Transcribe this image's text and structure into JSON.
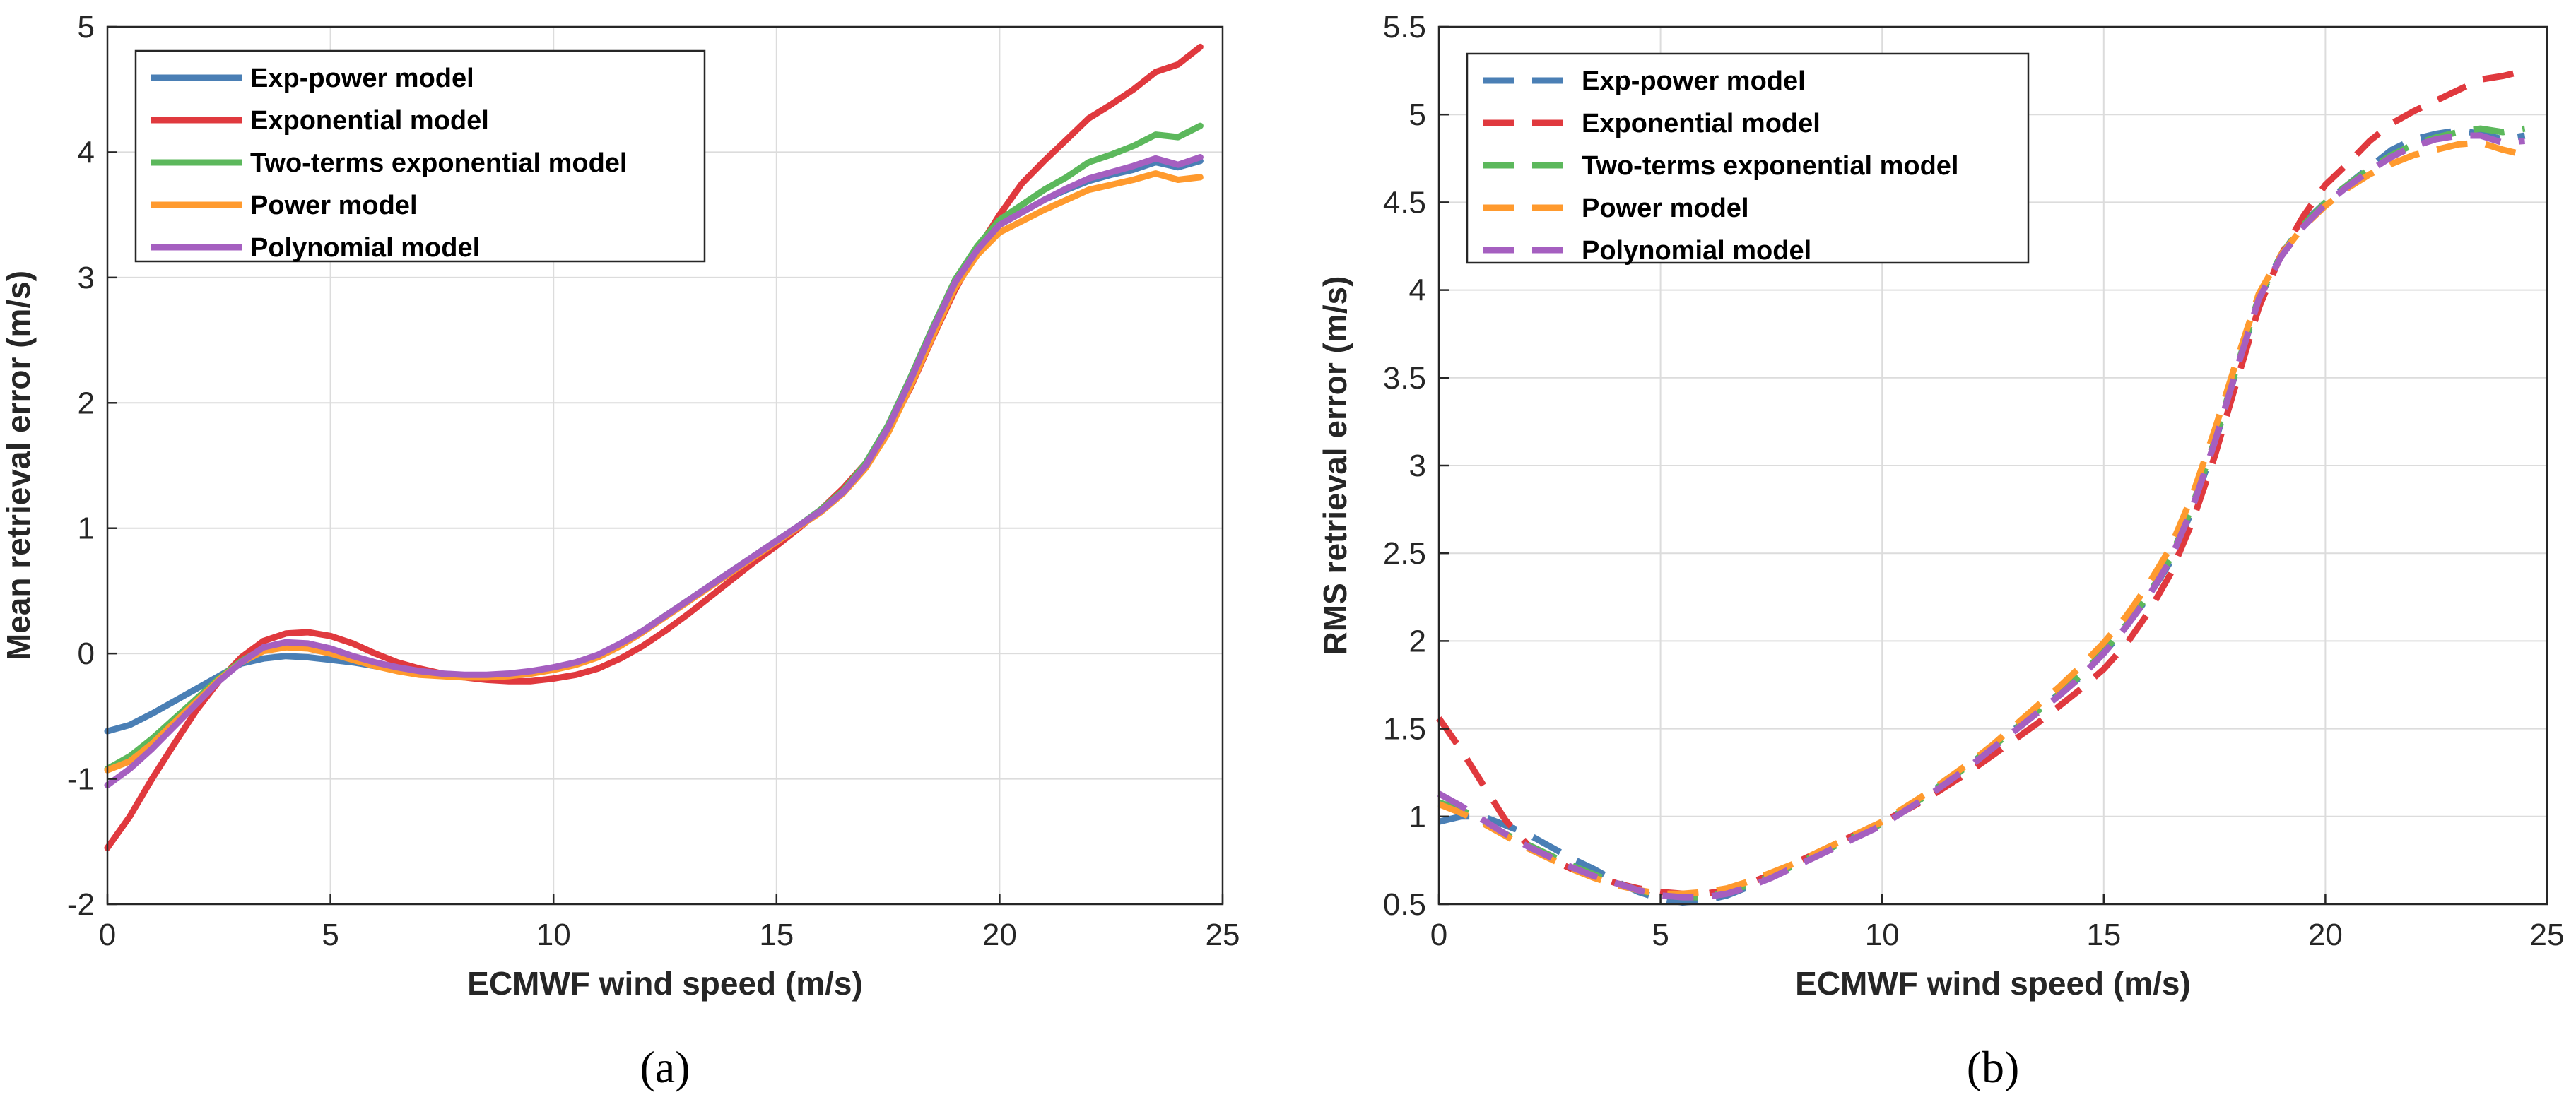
{
  "colors": {
    "exp_power": "#4a7fb5",
    "exponential": "#e0393e",
    "two_terms": "#5cb85c",
    "power": "#ff9a2e",
    "polynomial": "#a55fc0"
  },
  "chart_data": [
    {
      "type": "line",
      "panel_label": "(a)",
      "title": "",
      "xlabel": "ECMWF wind speed (m/s)",
      "ylabel": "Mean retrieval error (m/s)",
      "xlim": [
        0,
        25
      ],
      "ylim": [
        -2,
        5
      ],
      "xticks": [
        0,
        5,
        10,
        15,
        20,
        25
      ],
      "yticks": [
        -2,
        -1,
        0,
        1,
        2,
        3,
        4,
        5
      ],
      "grid": true,
      "legend_position": "top-left",
      "line_style": "solid",
      "x": [
        0,
        0.5,
        1,
        1.5,
        2,
        2.5,
        3,
        3.5,
        4,
        4.5,
        5,
        5.5,
        6,
        6.5,
        7,
        7.5,
        8,
        8.5,
        9,
        9.5,
        10,
        10.5,
        11,
        11.5,
        12,
        12.5,
        13,
        13.5,
        14,
        14.5,
        15,
        15.5,
        16,
        16.5,
        17,
        17.5,
        18,
        18.5,
        19,
        19.5,
        20,
        20.5,
        21,
        21.5,
        22,
        22.5,
        23,
        23.5,
        24,
        24.5
      ],
      "series": [
        {
          "name": "Exp-power model",
          "color_key": "exp_power",
          "values": [
            -0.62,
            -0.57,
            -0.48,
            -0.38,
            -0.28,
            -0.18,
            -0.08,
            -0.04,
            -0.02,
            -0.03,
            -0.05,
            -0.07,
            -0.1,
            -0.13,
            -0.15,
            -0.17,
            -0.18,
            -0.18,
            -0.17,
            -0.15,
            -0.12,
            -0.08,
            -0.02,
            0.07,
            0.18,
            0.3,
            0.42,
            0.54,
            0.66,
            0.78,
            0.9,
            1.02,
            1.15,
            1.3,
            1.52,
            1.82,
            2.2,
            2.6,
            2.97,
            3.22,
            3.42,
            3.52,
            3.62,
            3.7,
            3.77,
            3.82,
            3.86,
            3.92,
            3.88,
            3.93
          ]
        },
        {
          "name": "Exponential model",
          "color_key": "exponential",
          "values": [
            -1.55,
            -1.3,
            -1.0,
            -0.72,
            -0.45,
            -0.22,
            -0.03,
            0.1,
            0.16,
            0.17,
            0.14,
            0.08,
            0.0,
            -0.07,
            -0.12,
            -0.16,
            -0.19,
            -0.21,
            -0.22,
            -0.22,
            -0.2,
            -0.17,
            -0.12,
            -0.04,
            0.06,
            0.18,
            0.31,
            0.45,
            0.59,
            0.73,
            0.86,
            1.0,
            1.15,
            1.32,
            1.52,
            1.78,
            2.12,
            2.52,
            2.9,
            3.22,
            3.5,
            3.75,
            3.93,
            4.1,
            4.27,
            4.38,
            4.5,
            4.64,
            4.7,
            4.84
          ]
        },
        {
          "name": "Two-terms exponential model",
          "color_key": "two_terms",
          "values": [
            -0.92,
            -0.82,
            -0.68,
            -0.52,
            -0.36,
            -0.2,
            -0.06,
            0.04,
            0.07,
            0.05,
            0.01,
            -0.04,
            -0.09,
            -0.13,
            -0.16,
            -0.17,
            -0.18,
            -0.18,
            -0.17,
            -0.15,
            -0.12,
            -0.08,
            -0.02,
            0.07,
            0.18,
            0.3,
            0.42,
            0.54,
            0.66,
            0.78,
            0.9,
            1.02,
            1.15,
            1.3,
            1.52,
            1.82,
            2.2,
            2.6,
            2.98,
            3.25,
            3.46,
            3.58,
            3.7,
            3.8,
            3.92,
            3.98,
            4.05,
            4.14,
            4.12,
            4.21
          ]
        },
        {
          "name": "Power model",
          "color_key": "power",
          "values": [
            -0.93,
            -0.86,
            -0.72,
            -0.55,
            -0.38,
            -0.21,
            -0.07,
            0.02,
            0.05,
            0.04,
            0.0,
            -0.05,
            -0.1,
            -0.14,
            -0.17,
            -0.18,
            -0.19,
            -0.19,
            -0.18,
            -0.16,
            -0.13,
            -0.09,
            -0.03,
            0.06,
            0.17,
            0.29,
            0.41,
            0.53,
            0.65,
            0.77,
            0.89,
            1.01,
            1.13,
            1.28,
            1.48,
            1.76,
            2.13,
            2.53,
            2.92,
            3.18,
            3.36,
            3.45,
            3.54,
            3.62,
            3.7,
            3.74,
            3.78,
            3.83,
            3.78,
            3.8
          ]
        },
        {
          "name": "Polynomial model",
          "color_key": "polynomial",
          "values": [
            -1.05,
            -0.92,
            -0.76,
            -0.58,
            -0.4,
            -0.22,
            -0.07,
            0.05,
            0.09,
            0.08,
            0.04,
            -0.02,
            -0.07,
            -0.11,
            -0.14,
            -0.16,
            -0.17,
            -0.17,
            -0.16,
            -0.14,
            -0.11,
            -0.07,
            -0.01,
            0.08,
            0.18,
            0.3,
            0.42,
            0.54,
            0.66,
            0.78,
            0.9,
            1.02,
            1.14,
            1.29,
            1.5,
            1.8,
            2.18,
            2.58,
            2.96,
            3.22,
            3.42,
            3.52,
            3.62,
            3.71,
            3.79,
            3.84,
            3.89,
            3.95,
            3.9,
            3.96
          ]
        }
      ]
    },
    {
      "type": "line",
      "panel_label": "(b)",
      "title": "",
      "xlabel": "ECMWF wind speed (m/s)",
      "ylabel": "RMS retrieval error (m/s)",
      "xlim": [
        0,
        25
      ],
      "ylim": [
        0.5,
        5.5
      ],
      "xticks": [
        0,
        5,
        10,
        15,
        20,
        25
      ],
      "yticks": [
        0.5,
        1,
        1.5,
        2,
        2.5,
        3,
        3.5,
        4,
        4.5,
        5,
        5.5
      ],
      "grid": true,
      "legend_position": "top-left",
      "line_style": "dashed",
      "x": [
        0,
        0.5,
        1,
        1.5,
        2,
        2.5,
        3,
        3.5,
        4,
        4.5,
        5,
        5.5,
        6,
        6.5,
        7,
        7.5,
        8,
        8.5,
        9,
        9.5,
        10,
        10.5,
        11,
        11.5,
        12,
        12.5,
        13,
        13.5,
        14,
        14.5,
        15,
        15.5,
        16,
        16.5,
        17,
        17.5,
        18,
        18.5,
        19,
        19.5,
        20,
        20.5,
        21,
        21.5,
        22,
        22.5,
        23,
        23.5,
        24,
        24.5
      ],
      "series": [
        {
          "name": "Exp-power model",
          "color_key": "exp_power",
          "values": [
            0.97,
            1.0,
            1.0,
            0.95,
            0.9,
            0.83,
            0.76,
            0.7,
            0.63,
            0.57,
            0.53,
            0.51,
            0.52,
            0.55,
            0.6,
            0.66,
            0.72,
            0.78,
            0.84,
            0.9,
            0.96,
            1.04,
            1.12,
            1.21,
            1.3,
            1.4,
            1.5,
            1.6,
            1.7,
            1.8,
            1.93,
            2.08,
            2.25,
            2.45,
            2.75,
            3.12,
            3.55,
            3.95,
            4.2,
            4.38,
            4.5,
            4.6,
            4.7,
            4.8,
            4.86,
            4.89,
            4.91,
            4.89,
            4.86,
            4.88
          ]
        },
        {
          "name": "Exponential model",
          "color_key": "exponential",
          "values": [
            1.56,
            1.38,
            1.18,
            0.98,
            0.84,
            0.76,
            0.7,
            0.66,
            0.62,
            0.59,
            0.57,
            0.56,
            0.56,
            0.58,
            0.62,
            0.67,
            0.73,
            0.79,
            0.85,
            0.91,
            0.97,
            1.03,
            1.1,
            1.18,
            1.26,
            1.35,
            1.44,
            1.53,
            1.63,
            1.73,
            1.84,
            1.98,
            2.16,
            2.38,
            2.68,
            3.05,
            3.48,
            3.9,
            4.2,
            4.42,
            4.6,
            4.72,
            4.85,
            4.95,
            5.02,
            5.08,
            5.14,
            5.2,
            5.22,
            5.25
          ]
        },
        {
          "name": "Two-terms exponential model",
          "color_key": "two_terms",
          "values": [
            1.08,
            1.04,
            0.97,
            0.9,
            0.84,
            0.78,
            0.72,
            0.67,
            0.62,
            0.58,
            0.55,
            0.54,
            0.54,
            0.57,
            0.61,
            0.66,
            0.72,
            0.78,
            0.84,
            0.9,
            0.96,
            1.04,
            1.12,
            1.21,
            1.3,
            1.4,
            1.5,
            1.6,
            1.7,
            1.81,
            1.94,
            2.09,
            2.26,
            2.47,
            2.77,
            3.14,
            3.56,
            3.96,
            4.2,
            4.37,
            4.5,
            4.6,
            4.69,
            4.77,
            4.83,
            4.87,
            4.9,
            4.92,
            4.9,
            4.92
          ]
        },
        {
          "name": "Power model",
          "color_key": "power",
          "values": [
            1.07,
            1.02,
            0.96,
            0.89,
            0.82,
            0.76,
            0.7,
            0.65,
            0.61,
            0.58,
            0.56,
            0.56,
            0.57,
            0.59,
            0.63,
            0.68,
            0.73,
            0.79,
            0.85,
            0.91,
            0.97,
            1.05,
            1.13,
            1.22,
            1.31,
            1.41,
            1.52,
            1.63,
            1.74,
            1.86,
            1.99,
            2.14,
            2.32,
            2.53,
            2.83,
            3.2,
            3.6,
            3.98,
            4.2,
            4.36,
            4.48,
            4.58,
            4.66,
            4.72,
            4.77,
            4.8,
            4.83,
            4.84,
            4.8,
            4.77
          ]
        },
        {
          "name": "Polynomial model",
          "color_key": "polynomial",
          "values": [
            1.13,
            1.06,
            0.98,
            0.9,
            0.83,
            0.77,
            0.71,
            0.66,
            0.62,
            0.58,
            0.55,
            0.54,
            0.54,
            0.56,
            0.6,
            0.65,
            0.71,
            0.77,
            0.83,
            0.89,
            0.95,
            1.03,
            1.11,
            1.2,
            1.29,
            1.39,
            1.49,
            1.59,
            1.69,
            1.8,
            1.93,
            2.08,
            2.25,
            2.46,
            2.76,
            3.13,
            3.55,
            3.95,
            4.19,
            4.36,
            4.49,
            4.59,
            4.68,
            4.76,
            4.82,
            4.86,
            4.88,
            4.88,
            4.84,
            4.85
          ]
        }
      ]
    }
  ]
}
